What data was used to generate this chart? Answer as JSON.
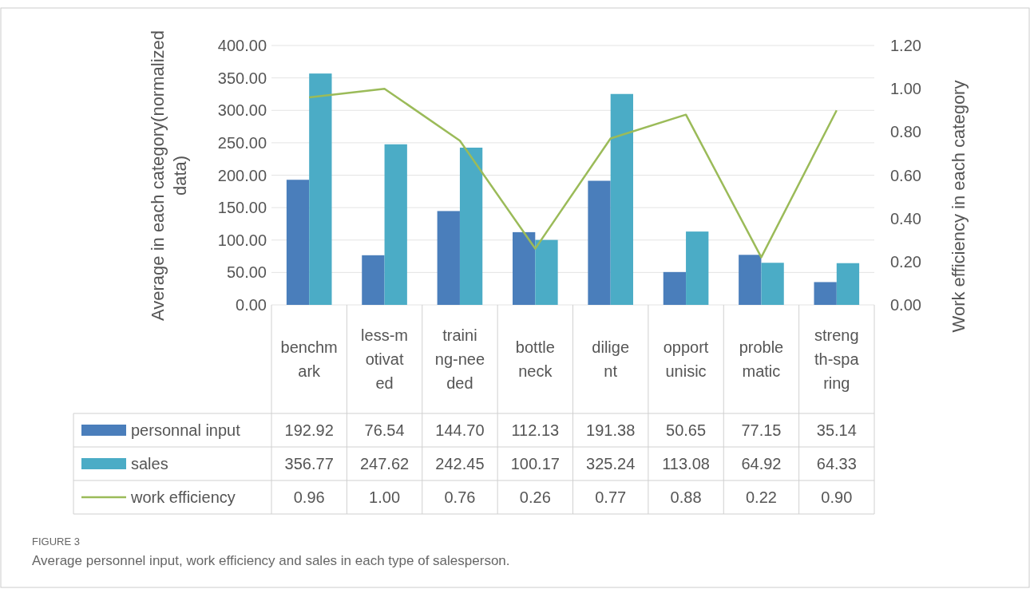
{
  "chart_data": {
    "type": "bar",
    "categories": [
      "benchmark",
      "less-motivated",
      "training-needed",
      "bottleneck",
      "diligent",
      "opportunisic",
      "problematic",
      "strength-sparing"
    ],
    "series": [
      {
        "name": "personnal input",
        "color": "#4a7ebb",
        "values": [
          192.92,
          76.54,
          144.7,
          112.13,
          191.38,
          50.65,
          77.15,
          35.14
        ],
        "value_labels": [
          "192.92",
          "76.54",
          "144.70",
          "112.13",
          "191.38",
          "50.65",
          "77.15",
          "35.14"
        ]
      },
      {
        "name": "sales",
        "color": "#4bacc6",
        "values": [
          356.77,
          247.62,
          242.45,
          100.17,
          325.24,
          113.08,
          64.92,
          64.33
        ],
        "value_labels": [
          "356.77",
          "247.62",
          "242.45",
          "100.17",
          "325.24",
          "113.08",
          "64.92",
          "64.33"
        ]
      },
      {
        "name": "work efficiency",
        "type": "line",
        "axis": "y2",
        "color": "#9bbb59",
        "values": [
          0.96,
          1.0,
          0.76,
          0.26,
          0.77,
          0.88,
          0.22,
          0.9
        ],
        "value_labels": [
          "0.96",
          "1.00",
          "0.76",
          "0.26",
          "0.77",
          "0.88",
          "0.22",
          "0.90"
        ]
      }
    ],
    "ylabel": "Average in each category(normalized data)",
    "y2label": "Work efficiency in each category",
    "ylim": [
      0,
      400
    ],
    "yticks": [
      {
        "value": 0,
        "label": "0.00"
      },
      {
        "value": 50,
        "label": "50.00"
      },
      {
        "value": 100,
        "label": "100.00"
      },
      {
        "value": 150,
        "label": "150.00"
      },
      {
        "value": 200,
        "label": "200.00"
      },
      {
        "value": 250,
        "label": "250.00"
      },
      {
        "value": 300,
        "label": "300.00"
      },
      {
        "value": 350,
        "label": "350.00"
      },
      {
        "value": 400,
        "label": "400.00"
      }
    ],
    "y2lim": [
      0,
      1.2
    ],
    "y2ticks": [
      {
        "value": 0,
        "label": "0.00"
      },
      {
        "value": 0.2,
        "label": "0.20"
      },
      {
        "value": 0.4,
        "label": "0.40"
      },
      {
        "value": 0.6,
        "label": "0.60"
      },
      {
        "value": 0.8,
        "label": "0.80"
      },
      {
        "value": 1.0,
        "label": "1.00"
      },
      {
        "value": 1.2,
        "label": "1.20"
      }
    ],
    "grid": "y",
    "legend": "bottom",
    "marker": "none",
    "line_style": "solid",
    "annotations": [
      "FIGURE 3",
      "Average personnel input, work efficiency and sales in each type of salesperson."
    ]
  }
}
